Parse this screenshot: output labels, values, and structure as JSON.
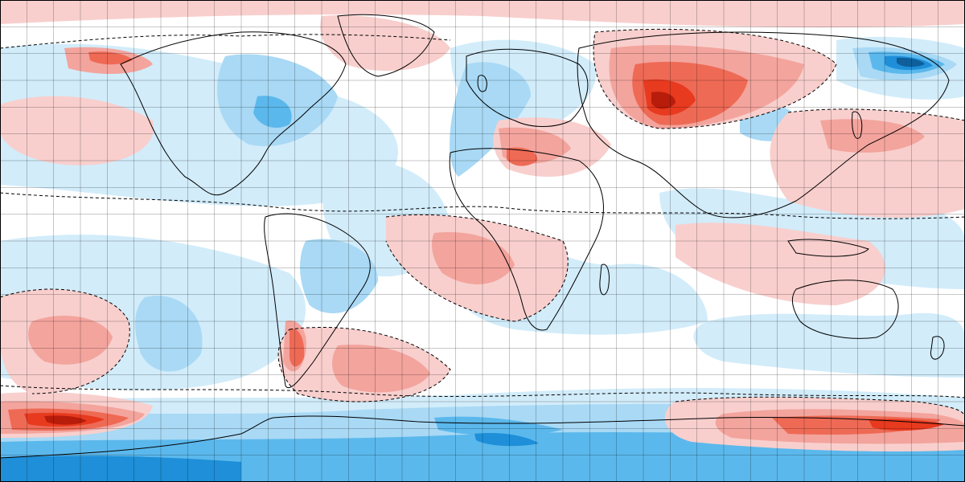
{
  "map": {
    "type": "global-anomaly-map",
    "projection": "equirectangular",
    "grid_lines": true,
    "grid_spacing_deg": 10,
    "colors": {
      "background": "#ffffff",
      "warm_1": "#f8cfcd",
      "warm_2": "#f3a49d",
      "warm_3": "#ee6a55",
      "warm_4": "#e73a1f",
      "warm_5": "#b81c0b",
      "cool_1": "#d2ecfa",
      "cool_2": "#a9d9f5",
      "cool_3": "#5bb8ec",
      "cool_4": "#1e8fd8",
      "cool_5": "#0f5f9a",
      "contour": "#000000",
      "coastline": "#000000",
      "grid": "#000000"
    },
    "features": {
      "coastlines": true,
      "country_borders": true,
      "dashed_zero_contours": true
    }
  }
}
